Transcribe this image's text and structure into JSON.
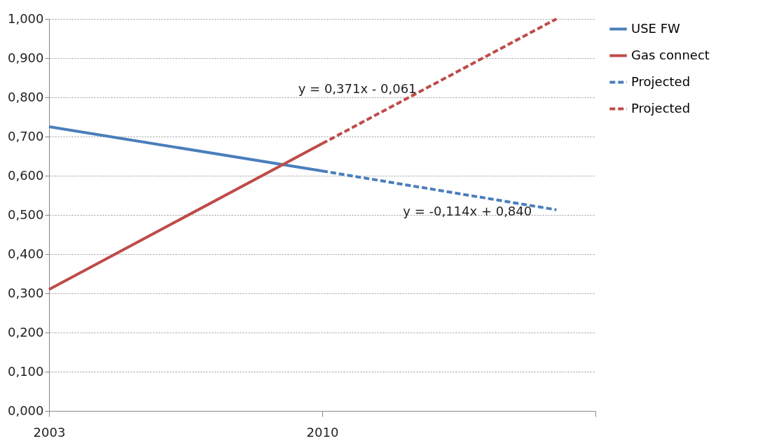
{
  "chart_data": {
    "type": "line",
    "xlim": [
      2003,
      2017
    ],
    "xticks": [
      2003,
      2010,
      {
        "value": 2017,
        "label": null
      }
    ],
    "ylim": [
      0,
      1
    ],
    "yticks": [
      {
        "value": 0,
        "label": "0,000"
      },
      {
        "value": 0.1,
        "label": "0,100"
      },
      {
        "value": 0.2,
        "label": "0,200"
      },
      {
        "value": 0.3,
        "label": "0,300"
      },
      {
        "value": 0.4,
        "label": "0,400"
      },
      {
        "value": 0.5,
        "label": "0,500"
      },
      {
        "value": 0.6,
        "label": "0,600"
      },
      {
        "value": 0.7,
        "label": "0,700"
      },
      {
        "value": 0.8,
        "label": "0,800"
      },
      {
        "value": 0.9,
        "label": "0,900"
      },
      {
        "value": 1,
        "label": "1,000"
      }
    ],
    "grid": "y",
    "legend": "right",
    "marker": "none",
    "series": [
      {
        "name": "USE FW",
        "color": "#4a7ebb",
        "x": [
          2003,
          2010
        ],
        "values": [
          0.725,
          0.612
        ],
        "line_style": "solid"
      },
      {
        "name": "Gas connect",
        "color": "#be4b48",
        "x": [
          2003,
          2010
        ],
        "values": [
          0.31,
          0.682
        ],
        "line_style": "solid"
      },
      {
        "name": "Projected",
        "color": "#4a7ebb",
        "x": [
          2010,
          2016
        ],
        "values": [
          0.612,
          0.513
        ],
        "line_style": "dashed"
      },
      {
        "name": "Projected",
        "color": "#be4b48",
        "x": [
          2010,
          2016
        ],
        "values": [
          0.682,
          1.0
        ],
        "line_style": "dashed"
      }
    ],
    "annotations": [
      "y = 0,371x - 0,061",
      "y = -0,114x + 0,840"
    ]
  }
}
